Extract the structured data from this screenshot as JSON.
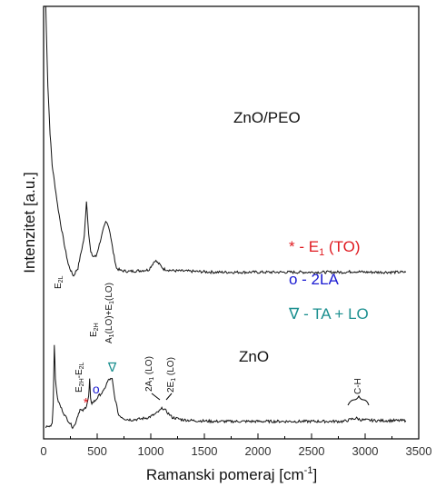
{
  "chart_data": {
    "type": "line",
    "xlabel": "Ramanski pomeraj [cm",
    "xlabel_sup": "-1",
    "xlabel_end": "]",
    "ylabel": "Intenzitet [a.u.]",
    "xlim": [
      0,
      3500
    ],
    "x_ticks": [
      "0",
      "500",
      "1000",
      "1500",
      "2000",
      "2500",
      "3000",
      "3500"
    ],
    "series": [
      {
        "name": "ZnO/PEO",
        "points": [
          [
            20,
            5.3
          ],
          [
            40,
            4.3
          ],
          [
            60,
            3.7
          ],
          [
            80,
            3.3
          ],
          [
            100,
            3.1
          ],
          [
            130,
            2.8
          ],
          [
            160,
            2.55
          ],
          [
            200,
            2.25
          ],
          [
            230,
            2.05
          ],
          [
            260,
            1.95
          ],
          [
            280,
            1.9
          ],
          [
            300,
            1.96
          ],
          [
            320,
            2.0
          ],
          [
            350,
            2.2
          ],
          [
            380,
            2.4
          ],
          [
            400,
            2.85
          ],
          [
            420,
            2.45
          ],
          [
            440,
            2.2
          ],
          [
            460,
            2.15
          ],
          [
            490,
            2.15
          ],
          [
            520,
            2.3
          ],
          [
            560,
            2.5
          ],
          [
            580,
            2.58
          ],
          [
            600,
            2.56
          ],
          [
            620,
            2.45
          ],
          [
            650,
            2.2
          ],
          [
            680,
            2.0
          ],
          [
            720,
            1.97
          ],
          [
            800,
            1.96
          ],
          [
            900,
            1.97
          ],
          [
            980,
            1.98
          ],
          [
            1040,
            2.1
          ],
          [
            1080,
            2.05
          ],
          [
            1120,
            1.99
          ],
          [
            1200,
            1.97
          ],
          [
            1400,
            1.96
          ],
          [
            1600,
            1.95
          ],
          [
            1800,
            1.95
          ],
          [
            2000,
            1.95
          ],
          [
            2200,
            1.95
          ],
          [
            2400,
            1.95
          ],
          [
            2600,
            1.95
          ],
          [
            2800,
            1.95
          ],
          [
            2900,
            1.96
          ],
          [
            3000,
            1.95
          ],
          [
            3200,
            1.95
          ],
          [
            3380,
            1.95
          ]
        ]
      },
      {
        "name": "ZnO",
        "points": [
          [
            20,
            0.0
          ],
          [
            60,
            0.01
          ],
          [
            80,
            0.05
          ],
          [
            90,
            0.3
          ],
          [
            100,
            1.05
          ],
          [
            110,
            0.6
          ],
          [
            130,
            0.35
          ],
          [
            160,
            0.25
          ],
          [
            200,
            0.14
          ],
          [
            240,
            0.06
          ],
          [
            270,
            0.0
          ],
          [
            290,
            0.02
          ],
          [
            320,
            0.15
          ],
          [
            340,
            0.22
          ],
          [
            360,
            0.2
          ],
          [
            380,
            0.22
          ],
          [
            400,
            0.27
          ],
          [
            420,
            0.38
          ],
          [
            430,
            0.6
          ],
          [
            438,
            0.35
          ],
          [
            450,
            0.3
          ],
          [
            480,
            0.33
          ],
          [
            520,
            0.4
          ],
          [
            560,
            0.45
          ],
          [
            590,
            0.55
          ],
          [
            610,
            0.6
          ],
          [
            640,
            0.6
          ],
          [
            660,
            0.4
          ],
          [
            700,
            0.15
          ],
          [
            760,
            0.1
          ],
          [
            820,
            0.09
          ],
          [
            900,
            0.1
          ],
          [
            980,
            0.12
          ],
          [
            1040,
            0.16
          ],
          [
            1080,
            0.2
          ],
          [
            1110,
            0.24
          ],
          [
            1150,
            0.19
          ],
          [
            1200,
            0.12
          ],
          [
            1300,
            0.09
          ],
          [
            1400,
            0.08
          ],
          [
            1600,
            0.07
          ],
          [
            1800,
            0.07
          ],
          [
            2000,
            0.07
          ],
          [
            2200,
            0.07
          ],
          [
            2400,
            0.07
          ],
          [
            2600,
            0.07
          ],
          [
            2800,
            0.07
          ],
          [
            2880,
            0.1
          ],
          [
            2920,
            0.11
          ],
          [
            2960,
            0.09
          ],
          [
            3100,
            0.08
          ],
          [
            3300,
            0.08
          ],
          [
            3380,
            0.08
          ]
        ]
      }
    ],
    "series_labels": {
      "zno_peo": "ZnO/PEO",
      "zno": "ZnO"
    },
    "peak_labels": [
      {
        "id": "e2l",
        "base": "E",
        "sub": "2L",
        "x": 100
      },
      {
        "id": "e2h_e2l",
        "base": "E",
        "sub": "2H",
        "mid": "-E",
        "sub2": "2L",
        "x": 330
      },
      {
        "id": "e2h",
        "base": "E",
        "sub": "2H",
        "x": 437
      },
      {
        "id": "a1_e1",
        "text": "A",
        "sub": "1",
        "mid": "(LO)+E",
        "sub2": "1",
        "end": "(LO)",
        "x": 580
      },
      {
        "id": "two_a1",
        "text": "2A",
        "sub": "1",
        "end": " (LO)",
        "x": 1060
      },
      {
        "id": "two_e1",
        "text": "2E",
        "sub": "1",
        "end": " (LO)",
        "x": 1150
      },
      {
        "id": "ch",
        "text": "C-H",
        "x": 2920
      }
    ],
    "legend": {
      "items": [
        {
          "symbol": "* - E",
          "sub": "1",
          "end": " (TO)",
          "color": "#e0191f"
        },
        {
          "symbol": "o - 2LA",
          "color": "#1a1ad2"
        },
        {
          "symbol": "∇ - TA + LO",
          "color": "#1b8f8f"
        }
      ]
    },
    "markers": [
      {
        "symbol": "*",
        "x": 395,
        "color": "#e0191f"
      },
      {
        "symbol": "o",
        "x": 490,
        "color": "#1a1ad2"
      },
      {
        "symbol": "∇",
        "x": 640,
        "color": "#1b8f8f"
      }
    ],
    "grid": false
  }
}
